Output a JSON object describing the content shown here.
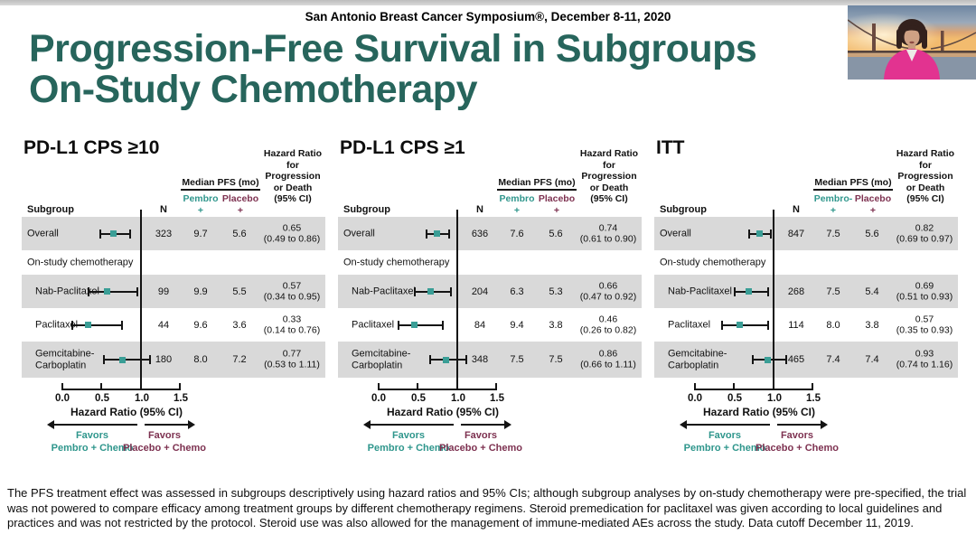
{
  "page": {
    "top_header": "San Antonio Breast Cancer Symposium®, December 8-11, 2020",
    "title": "Progression-Free Survival in Subgroups\nOn-Study Chemotherapy",
    "footnote": "The PFS treatment effect was assessed in subgroups descriptively using hazard ratios and 95% CIs; although subgroup analyses by on-study chemotherapy were pre-specified, the trial was not powered to compare efficacy among treatment groups by different chemotherapy regimens. Steroid premedication for paclitaxel was given according to local guidelines and practices and was not restricted by the protocol. Steroid use was also allowed for the management of immune-mediated AEs across the study. Data cutoff December 11, 2019."
  },
  "colors": {
    "title_teal": "#27655c",
    "pembro_teal": "#2f968c",
    "placebo_maroon": "#7d3150",
    "row_shade": "#d9d9d9",
    "marker_teal": "#3a9e96"
  },
  "shared": {
    "subgroup_col": "Subgroup",
    "n_col": "N",
    "median_pfs_header": "Median PFS (mo)",
    "hr_col_header": "Hazard Ratio\nfor\nProgression\nor Death\n(95% CI)",
    "favors_left": "Favors\nPembro + Chemo",
    "favors_right": "Favors\nPlacebo + Chemo"
  },
  "chart_data": [
    {
      "type": "scatter",
      "subtype": "forest_plot",
      "title": "PD-L1 CPS ≥10",
      "xlabel": "Hazard Ratio (95% CI)",
      "xlim": [
        0.0,
        1.5
      ],
      "xticks": [
        "0.0",
        "0.5",
        "1.0",
        "1.5"
      ],
      "reference_line": 1.0,
      "pembro_header": "Pembro\n+ Chemo",
      "placebo_header": "Placebo\n+ Chemo",
      "rows": [
        {
          "subgroup": "Overall",
          "label": "Overall",
          "indent": false,
          "shaded": true,
          "n": "323",
          "median_pembro_chemo": "9.7",
          "median_placebo_chemo": "5.6",
          "hr": 0.65,
          "ci_low": 0.49,
          "ci_high": 0.86,
          "hr_text": "0.65",
          "ci_text": "(0.49 to 0.86)"
        },
        {
          "section": true,
          "label": "On-study chemotherapy"
        },
        {
          "subgroup": "Nab-Paclitaxel",
          "label": "Nab-Paclitaxel",
          "indent": true,
          "shaded": true,
          "n": "99",
          "median_pembro_chemo": "9.9",
          "median_placebo_chemo": "5.5",
          "hr": 0.57,
          "ci_low": 0.34,
          "ci_high": 0.95,
          "hr_text": "0.57",
          "ci_text": "(0.34 to 0.95)"
        },
        {
          "subgroup": "Paclitaxel",
          "label": "Paclitaxel",
          "indent": true,
          "shaded": false,
          "n": "44",
          "median_pembro_chemo": "9.6",
          "median_placebo_chemo": "3.6",
          "hr": 0.33,
          "ci_low": 0.14,
          "ci_high": 0.76,
          "hr_text": "0.33",
          "ci_text": "(0.14 to 0.76)"
        },
        {
          "subgroup": "Gemcitabine-Carboplatin",
          "label": "Gemcitabine-\nCarboplatin",
          "indent": true,
          "shaded": true,
          "n": "180",
          "median_pembro_chemo": "8.0",
          "median_placebo_chemo": "7.2",
          "hr": 0.77,
          "ci_low": 0.53,
          "ci_high": 1.11,
          "hr_text": "0.77",
          "ci_text": "(0.53 to 1.11)"
        }
      ]
    },
    {
      "type": "scatter",
      "subtype": "forest_plot",
      "title": "PD-L1 CPS ≥1",
      "xlabel": "Hazard Ratio (95% CI)",
      "xlim": [
        0.0,
        1.5
      ],
      "xticks": [
        "0.0",
        "0.5",
        "1.0",
        "1.5"
      ],
      "reference_line": 1.0,
      "pembro_header": "Pembro\n+ Chemo",
      "placebo_header": "Placebo\n+ Chemo",
      "rows": [
        {
          "subgroup": "Overall",
          "label": "Overall",
          "indent": false,
          "shaded": true,
          "n": "636",
          "median_pembro_chemo": "7.6",
          "median_placebo_chemo": "5.6",
          "hr": 0.74,
          "ci_low": 0.61,
          "ci_high": 0.9,
          "hr_text": "0.74",
          "ci_text": "(0.61 to 0.90)"
        },
        {
          "section": true,
          "label": "On-study chemotherapy"
        },
        {
          "subgroup": "Nab-Paclitaxel",
          "label": "Nab-Paclitaxel",
          "indent": true,
          "shaded": true,
          "n": "204",
          "median_pembro_chemo": "6.3",
          "median_placebo_chemo": "5.3",
          "hr": 0.66,
          "ci_low": 0.47,
          "ci_high": 0.92,
          "hr_text": "0.66",
          "ci_text": "(0.47 to 0.92)"
        },
        {
          "subgroup": "Paclitaxel",
          "label": "Paclitaxel",
          "indent": true,
          "shaded": false,
          "n": "84",
          "median_pembro_chemo": "9.4",
          "median_placebo_chemo": "3.8",
          "hr": 0.46,
          "ci_low": 0.26,
          "ci_high": 0.82,
          "hr_text": "0.46",
          "ci_text": "(0.26 to 0.82)"
        },
        {
          "subgroup": "Gemcitabine-Carboplatin",
          "label": "Gemcitabine-\nCarboplatin",
          "indent": true,
          "shaded": true,
          "n": "348",
          "median_pembro_chemo": "7.5",
          "median_placebo_chemo": "7.5",
          "hr": 0.86,
          "ci_low": 0.66,
          "ci_high": 1.11,
          "hr_text": "0.86",
          "ci_text": "(0.66 to 1.11)"
        }
      ]
    },
    {
      "type": "scatter",
      "subtype": "forest_plot",
      "title": "ITT",
      "xlabel": "Hazard Ratio (95% CI)",
      "xlim": [
        0.0,
        1.5
      ],
      "xticks": [
        "0.0",
        "0.5",
        "1.0",
        "1.5"
      ],
      "reference_line": 1.0,
      "pembro_header": "Pembro-\n+ Chemo",
      "placebo_header": "Placebo\n+ Chemo",
      "rows": [
        {
          "subgroup": "Overall",
          "label": "Overall",
          "indent": false,
          "shaded": true,
          "n": "847",
          "median_pembro_chemo": "7.5",
          "median_placebo_chemo": "5.6",
          "hr": 0.82,
          "ci_low": 0.69,
          "ci_high": 0.97,
          "hr_text": "0.82",
          "ci_text": "(0.69 to 0.97)"
        },
        {
          "section": true,
          "label": "On-study chemotherapy"
        },
        {
          "subgroup": "Nab-Paclitaxel",
          "label": "Nab-Paclitaxel",
          "indent": true,
          "shaded": true,
          "n": "268",
          "median_pembro_chemo": "7.5",
          "median_placebo_chemo": "5.4",
          "hr": 0.69,
          "ci_low": 0.51,
          "ci_high": 0.93,
          "hr_text": "0.69",
          "ci_text": "(0.51 to 0.93)"
        },
        {
          "subgroup": "Paclitaxel",
          "label": "Paclitaxel",
          "indent": true,
          "shaded": false,
          "n": "114",
          "median_pembro_chemo": "8.0",
          "median_placebo_chemo": "3.8",
          "hr": 0.57,
          "ci_low": 0.35,
          "ci_high": 0.93,
          "hr_text": "0.57",
          "ci_text": "(0.35 to 0.93)"
        },
        {
          "subgroup": "Gemcitabine-Carboplatin",
          "label": "Gemcitabine-\nCarboplatin",
          "indent": true,
          "shaded": true,
          "n": "465",
          "median_pembro_chemo": "7.4",
          "median_placebo_chemo": "7.4",
          "hr": 0.93,
          "ci_low": 0.74,
          "ci_high": 1.16,
          "hr_text": "0.93",
          "ci_text": "(0.74 to 1.16)"
        }
      ]
    }
  ]
}
